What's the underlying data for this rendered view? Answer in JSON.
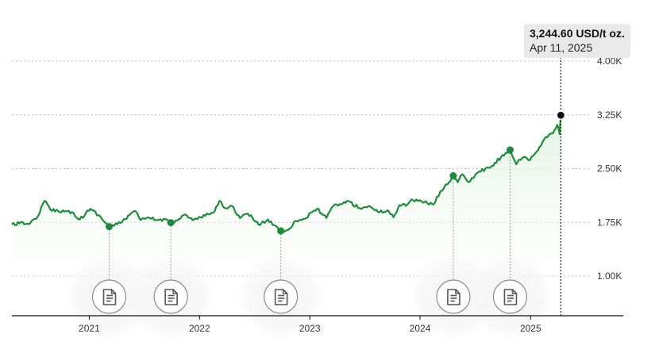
{
  "tooltip": {
    "value": "3,244.60 USD/t oz.",
    "date": "Apr 11, 2025"
  },
  "colors": {
    "line": "#1f8a3b",
    "area_top": "#e3f3e3",
    "marker": "#1f8a3b",
    "crosshair": "#222222",
    "grid": "#bdbdbd",
    "news_icon": "#555555"
  },
  "chart_data": {
    "type": "line",
    "title": "",
    "xlabel": "",
    "ylabel": "",
    "unit": "USD/t oz.",
    "x_ticks": [
      "2021",
      "2022",
      "2023",
      "2024",
      "2025"
    ],
    "y_ticks": [
      {
        "value": 1000,
        "label": "1.00K"
      },
      {
        "value": 1750,
        "label": "1.75K"
      },
      {
        "value": 2500,
        "label": "2.50K"
      },
      {
        "value": 3250,
        "label": "3.25K"
      },
      {
        "value": 4000,
        "label": "4.00K"
      }
    ],
    "ylim": [
      400,
      4100
    ],
    "xlim": [
      "2020-04-20",
      "2025-06-20"
    ],
    "grid": true,
    "series": [
      {
        "values": [
          {
            "x": "2020-04-20",
            "y": 1720
          },
          {
            "x": "2020-05-15",
            "y": 1735
          },
          {
            "x": "2020-06-10",
            "y": 1730
          },
          {
            "x": "2020-07-10",
            "y": 1800
          },
          {
            "x": "2020-08-06",
            "y": 2050
          },
          {
            "x": "2020-08-25",
            "y": 1930
          },
          {
            "x": "2020-09-20",
            "y": 1910
          },
          {
            "x": "2020-10-20",
            "y": 1905
          },
          {
            "x": "2020-11-10",
            "y": 1880
          },
          {
            "x": "2020-12-01",
            "y": 1790
          },
          {
            "x": "2021-01-05",
            "y": 1940
          },
          {
            "x": "2021-02-01",
            "y": 1850
          },
          {
            "x": "2021-03-08",
            "y": 1690
          },
          {
            "x": "2021-04-15",
            "y": 1740
          },
          {
            "x": "2021-05-20",
            "y": 1880
          },
          {
            "x": "2021-06-01",
            "y": 1910
          },
          {
            "x": "2021-06-20",
            "y": 1780
          },
          {
            "x": "2021-07-20",
            "y": 1810
          },
          {
            "x": "2021-08-15",
            "y": 1780
          },
          {
            "x": "2021-09-15",
            "y": 1790
          },
          {
            "x": "2021-09-28",
            "y": 1745
          },
          {
            "x": "2021-10-25",
            "y": 1795
          },
          {
            "x": "2021-11-15",
            "y": 1860
          },
          {
            "x": "2021-12-10",
            "y": 1780
          },
          {
            "x": "2022-01-20",
            "y": 1840
          },
          {
            "x": "2022-02-20",
            "y": 1900
          },
          {
            "x": "2022-03-08",
            "y": 2050
          },
          {
            "x": "2022-03-25",
            "y": 1950
          },
          {
            "x": "2022-04-18",
            "y": 1980
          },
          {
            "x": "2022-05-15",
            "y": 1810
          },
          {
            "x": "2022-06-10",
            "y": 1870
          },
          {
            "x": "2022-07-20",
            "y": 1710
          },
          {
            "x": "2022-08-15",
            "y": 1790
          },
          {
            "x": "2022-09-27",
            "y": 1630
          },
          {
            "x": "2022-10-20",
            "y": 1640
          },
          {
            "x": "2022-11-15",
            "y": 1770
          },
          {
            "x": "2022-12-15",
            "y": 1800
          },
          {
            "x": "2023-01-25",
            "y": 1940
          },
          {
            "x": "2023-02-25",
            "y": 1810
          },
          {
            "x": "2023-03-20",
            "y": 1980
          },
          {
            "x": "2023-04-15",
            "y": 2000
          },
          {
            "x": "2023-05-04",
            "y": 2050
          },
          {
            "x": "2023-06-15",
            "y": 1950
          },
          {
            "x": "2023-07-20",
            "y": 1970
          },
          {
            "x": "2023-08-20",
            "y": 1890
          },
          {
            "x": "2023-09-15",
            "y": 1920
          },
          {
            "x": "2023-10-05",
            "y": 1820
          },
          {
            "x": "2023-10-25",
            "y": 1990
          },
          {
            "x": "2023-11-20",
            "y": 2000
          },
          {
            "x": "2023-12-04",
            "y": 2070
          },
          {
            "x": "2024-01-15",
            "y": 2030
          },
          {
            "x": "2024-02-15",
            "y": 2000
          },
          {
            "x": "2024-03-08",
            "y": 2180
          },
          {
            "x": "2024-04-01",
            "y": 2280
          },
          {
            "x": "2024-04-20",
            "y": 2400
          },
          {
            "x": "2024-05-05",
            "y": 2310
          },
          {
            "x": "2024-05-20",
            "y": 2420
          },
          {
            "x": "2024-06-10",
            "y": 2310
          },
          {
            "x": "2024-07-15",
            "y": 2460
          },
          {
            "x": "2024-08-20",
            "y": 2510
          },
          {
            "x": "2024-09-25",
            "y": 2660
          },
          {
            "x": "2024-10-25",
            "y": 2760
          },
          {
            "x": "2024-11-14",
            "y": 2560
          },
          {
            "x": "2024-12-05",
            "y": 2650
          },
          {
            "x": "2024-12-30",
            "y": 2620
          },
          {
            "x": "2025-01-20",
            "y": 2730
          },
          {
            "x": "2025-02-20",
            "y": 2940
          },
          {
            "x": "2025-03-15",
            "y": 2990
          },
          {
            "x": "2025-03-30",
            "y": 3110
          },
          {
            "x": "2025-04-07",
            "y": 2980
          },
          {
            "x": "2025-04-11",
            "y": 3244.6
          }
        ]
      }
    ],
    "news_events": [
      "2021-03-08",
      "2021-09-28",
      "2022-09-27",
      "2024-04-20",
      "2024-10-25"
    ],
    "highlight": {
      "x": "2025-04-11",
      "y": 3244.6
    }
  }
}
